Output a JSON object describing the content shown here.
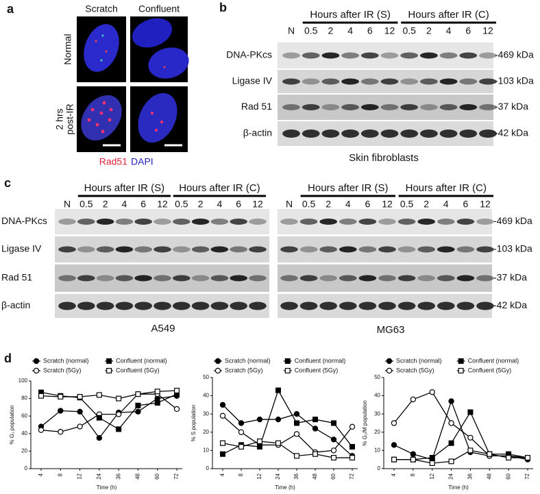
{
  "panel_a": {
    "label": "a",
    "columns": [
      "Scratch",
      "Confluent"
    ],
    "rows": [
      {
        "lines": [
          "Normal"
        ]
      },
      {
        "lines": [
          "2 hrs",
          "post-IR"
        ]
      }
    ],
    "stains": [
      "Rad51",
      "DAPI"
    ]
  },
  "panel_b": {
    "label": "b",
    "groups": [
      "Hours after IR (S)",
      "Hours after IR (C)"
    ],
    "lanes": [
      "N",
      "0.5",
      "2",
      "4",
      "6",
      "12",
      "0.5",
      "2",
      "4",
      "6",
      "12"
    ],
    "proteins": [
      "DNA-PKcs",
      "Ligase IV",
      "Rad 51",
      "β-actin"
    ],
    "sizes": [
      "-469 kDa",
      "-103 kDa",
      "-37 kDa",
      "-42 kDa"
    ],
    "caption": "Skin fibroblasts"
  },
  "panel_c": {
    "label": "c",
    "proteins": [
      "DNA-PKcs",
      "Ligase IV",
      "Rad 51",
      "β-actin"
    ],
    "sizes": [
      "-469 kDa",
      "-103 kDa",
      "-37 kDa",
      "-42 kDa"
    ],
    "blots": [
      {
        "groups": [
          "Hours after IR (S)",
          "Hours after IR (C)"
        ],
        "lanes": [
          "N",
          "0.5",
          "2",
          "4",
          "6",
          "12",
          "0.5",
          "2",
          "4",
          "6",
          "12"
        ],
        "caption": "A549"
      },
      {
        "groups": [
          "Hours after IR (S)",
          "Hours after IR (C)"
        ],
        "lanes": [
          "N",
          "0.5",
          "2",
          "4",
          "6",
          "12",
          "0.5",
          "2",
          "4",
          "6",
          "12"
        ],
        "caption": "MG63"
      }
    ]
  },
  "panel_d": {
    "label": "d"
  },
  "chart_data": [
    {
      "type": "line",
      "y_label": "% G₁ population",
      "x_label": "Time (h)",
      "categories": [
        "4",
        "8",
        "12",
        "24",
        "36",
        "48",
        "60",
        "72"
      ],
      "ylim": [
        0,
        100
      ],
      "yticks": [
        0,
        20,
        40,
        60,
        80,
        100
      ],
      "series": [
        {
          "name": "Scratch (normal)",
          "color": "#000000",
          "marker": "circle",
          "filled": true,
          "values": [
            48,
            66,
            65,
            35,
            64,
            65,
            80,
            83
          ]
        },
        {
          "name": "Scratch (5Gy)",
          "color": "#000000",
          "marker": "circle",
          "filled": false,
          "values": [
            44,
            42,
            48,
            62,
            62,
            85,
            85,
            68
          ]
        },
        {
          "name": "Confluent  (normal)",
          "color": "#000000",
          "marker": "square",
          "filled": true,
          "values": [
            87,
            83,
            81,
            58,
            45,
            72,
            75,
            85
          ]
        },
        {
          "name": "Confluent (5Gy)",
          "color": "#000000",
          "marker": "square",
          "filled": false,
          "values": [
            83,
            82,
            82,
            84,
            80,
            85,
            88,
            89
          ]
        }
      ]
    },
    {
      "type": "line",
      "y_label": "% S population",
      "x_label": "Time (h)",
      "categories": [
        "4",
        "8",
        "12",
        "24",
        "36",
        "48",
        "60",
        "72"
      ],
      "ylim": [
        0,
        50
      ],
      "yticks": [
        0,
        10,
        20,
        30,
        40,
        50
      ],
      "series": [
        {
          "name": "Scratch (normal)",
          "color": "#000000",
          "marker": "circle",
          "filled": true,
          "values": [
            35,
            25,
            27,
            27,
            30,
            22,
            16,
            7
          ]
        },
        {
          "name": "Scratch (5Gy)",
          "color": "#000000",
          "marker": "circle",
          "filled": false,
          "values": [
            29,
            20,
            13,
            13,
            19,
            9,
            10,
            23
          ]
        },
        {
          "name": "Confluent  (normal)",
          "color": "#000000",
          "marker": "square",
          "filled": true,
          "values": [
            8,
            13,
            12,
            43,
            25,
            27,
            25,
            12
          ]
        },
        {
          "name": "Confluent (5Gy)",
          "color": "#000000",
          "marker": "square",
          "filled": false,
          "values": [
            14,
            12,
            15,
            14,
            7,
            8,
            6,
            6
          ]
        }
      ]
    },
    {
      "type": "line",
      "y_label": "% G₂/M population",
      "x_label": "Time (h)",
      "categories": [
        "4",
        "8",
        "12",
        "24",
        "36",
        "48",
        "60",
        "72"
      ],
      "ylim": [
        0,
        50
      ],
      "yticks": [
        0,
        10,
        20,
        30,
        40,
        50
      ],
      "series": [
        {
          "name": "Scratch (normal)",
          "color": "#000000",
          "marker": "circle",
          "filled": true,
          "values": [
            13,
            8,
            5,
            37,
            9,
            7,
            7,
            5
          ]
        },
        {
          "name": "Scratch (5Gy)",
          "color": "#000000",
          "marker": "circle",
          "filled": false,
          "values": [
            25,
            38,
            42,
            25,
            17,
            7,
            7,
            6
          ]
        },
        {
          "name": "Confluent  (normal)",
          "color": "#000000",
          "marker": "square",
          "filled": true,
          "values": [
            5,
            5,
            6,
            14,
            31,
            8,
            8,
            6
          ]
        },
        {
          "name": "Confluent (5Gy)",
          "color": "#000000",
          "marker": "square",
          "filled": false,
          "values": [
            5,
            5,
            3,
            4,
            10,
            8,
            6,
            6
          ]
        }
      ]
    }
  ]
}
